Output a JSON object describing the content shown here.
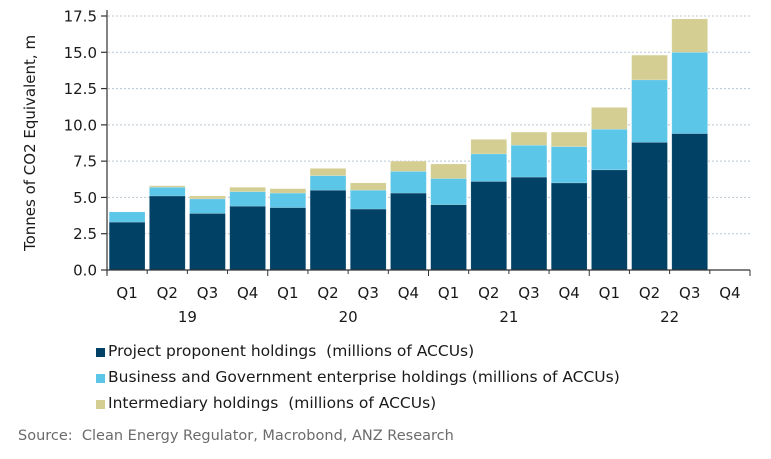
{
  "chart_data": {
    "type": "bar",
    "stacked": true,
    "title": "",
    "xlabel": "",
    "ylabel": "Tonnes of CO2 Equivalent, m",
    "ylim": [
      0,
      17.5
    ],
    "yticks": [
      "0.0",
      "2.5",
      "5.0",
      "7.5",
      "10.0",
      "12.5",
      "15.0",
      "17.5"
    ],
    "ytick_values": [
      0,
      2.5,
      5,
      7.5,
      10,
      12.5,
      15,
      17.5
    ],
    "grid": true,
    "categories": [
      "Q1",
      "Q2",
      "Q3",
      "Q4",
      "Q1",
      "Q2",
      "Q3",
      "Q4",
      "Q1",
      "Q2",
      "Q3",
      "Q4",
      "Q1",
      "Q2",
      "Q3",
      "Q4"
    ],
    "year_groups": [
      {
        "label": "19",
        "start": 0,
        "count": 4
      },
      {
        "label": "20",
        "start": 4,
        "count": 4
      },
      {
        "label": "21",
        "start": 8,
        "count": 4
      },
      {
        "label": "22",
        "start": 12,
        "count": 4
      }
    ],
    "series": [
      {
        "name": "Project proponent holdings  (millions of ACCUs)",
        "color": "#004165",
        "values": [
          3.3,
          5.1,
          3.9,
          4.4,
          4.3,
          5.5,
          4.2,
          5.3,
          4.5,
          6.1,
          6.4,
          6.0,
          6.9,
          8.8,
          9.4,
          null
        ]
      },
      {
        "name": "Business and Government enterprise holdings (millions of ACCUs)",
        "color": "#5BC6E8",
        "values": [
          0.7,
          0.6,
          1.0,
          1.0,
          1.0,
          1.0,
          1.3,
          1.5,
          1.8,
          1.9,
          2.2,
          2.5,
          2.8,
          4.3,
          5.6,
          null
        ]
      },
      {
        "name": "Intermediary holdings  (millions of ACCUs)",
        "color": "#D4CE92",
        "values": [
          0.0,
          0.1,
          0.2,
          0.3,
          0.3,
          0.5,
          0.5,
          0.7,
          1.0,
          1.0,
          0.9,
          1.0,
          1.5,
          1.7,
          2.3,
          null
        ]
      }
    ],
    "legend_position": "bottom-left"
  },
  "source": "Source:  Clean Energy Regulator, Macrobond, ANZ Research"
}
